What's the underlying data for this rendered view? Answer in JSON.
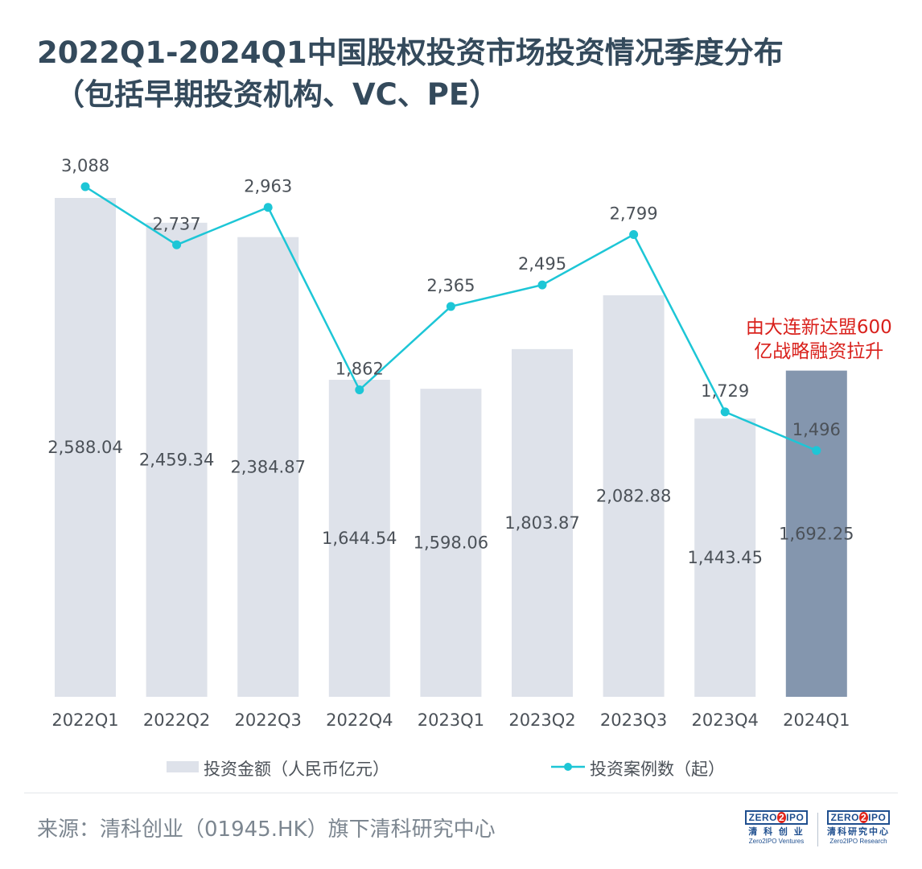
{
  "title": {
    "line1": "2022Q1-2024Q1中国股权投资市场投资情况季度分布",
    "line2": "（包括早期投资机构、VC、PE）"
  },
  "colors": {
    "bar": "#dee2ea",
    "bar_highlight": "#8496ae",
    "line": "#1dc6d6",
    "label": "#4b5158",
    "annotation": "#d9211c"
  },
  "chart_data": {
    "type": "bar",
    "categories": [
      "2022Q1",
      "2022Q2",
      "2022Q3",
      "2022Q4",
      "2023Q1",
      "2023Q2",
      "2023Q3",
      "2023Q4",
      "2024Q1"
    ],
    "series": [
      {
        "name": "投资金额（人民币亿元）",
        "type": "bar",
        "labels": [
          "2,588.04",
          "2,459.34",
          "2,384.87",
          "1,644.54",
          "1,598.06",
          "1,803.87",
          "2,082.88",
          "1,443.45",
          "1,692.25"
        ],
        "values": [
          2588.04,
          2459.34,
          2384.87,
          1644.54,
          1598.06,
          1803.87,
          2082.88,
          1443.45,
          1692.25
        ],
        "highlight_index": 8
      },
      {
        "name": "投资案例数（起）",
        "type": "line",
        "labels": [
          "3,088",
          "2,737",
          "2,963",
          "1,862",
          "2,365",
          "2,495",
          "2,799",
          "1,729",
          "1,496"
        ],
        "values": [
          3088,
          2737,
          2963,
          1862,
          2365,
          2495,
          2799,
          1729,
          1496
        ]
      }
    ],
    "annotation": {
      "lines": [
        "由大连新达盟600",
        "亿战略融资拉升"
      ],
      "category": "2024Q1"
    },
    "legend_placement": "bottom",
    "grid": false
  },
  "legend": {
    "bar_label": "投资金额（人民币亿元）",
    "line_label": "投资案例数（起）"
  },
  "footer": {
    "source": "来源：清科创业（01945.HK）旗下清科研究中心",
    "logo_left": {
      "badge_left": "ZERO",
      "badge_two": "2",
      "badge_right": "IPO",
      "cn": "清 科 创 业",
      "en": "Zero2IPO Ventures"
    },
    "logo_right": {
      "badge_left": "ZERO",
      "badge_two": "2",
      "badge_right": "IPO",
      "cn": "清科研究中心",
      "en": "Zero2IPO Research"
    }
  }
}
